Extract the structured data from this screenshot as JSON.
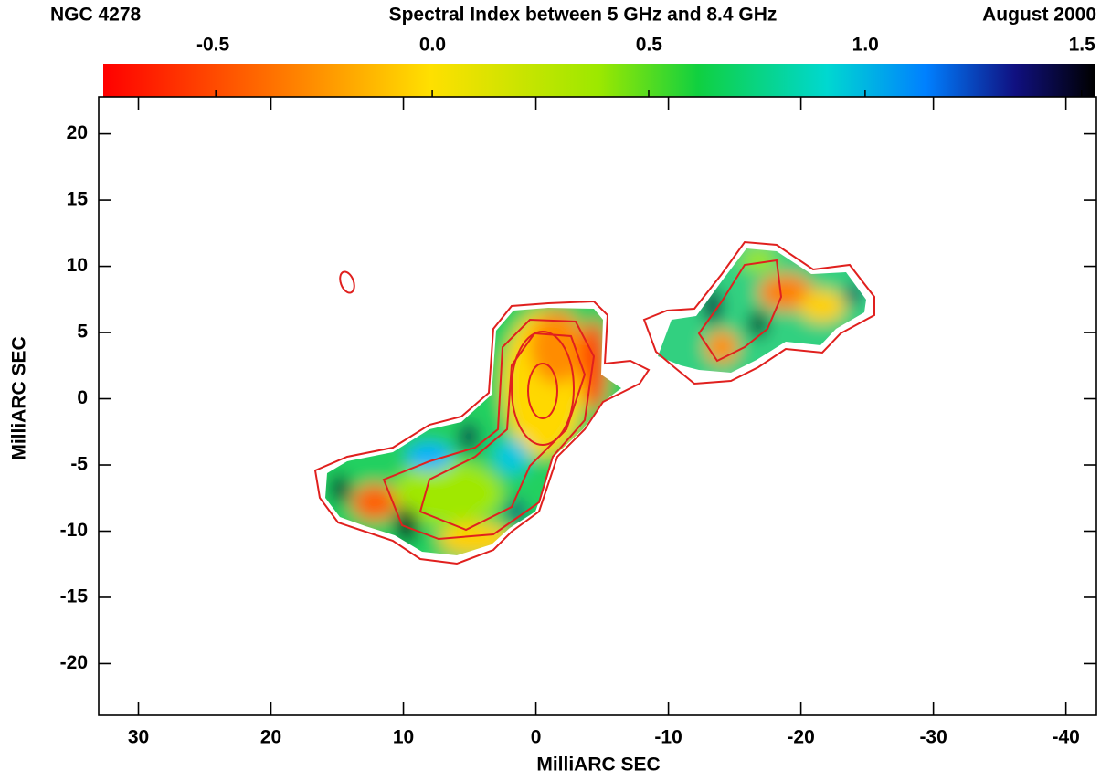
{
  "chart_data": {
    "type": "map",
    "object": "NGC 4278",
    "title": "Spectral Index between 5 GHz and 8.4 GHz",
    "date": "August 2000",
    "xlabel": "MilliARC SEC",
    "ylabel": "MilliARC SEC",
    "xlim": [
      33,
      -42.3
    ],
    "ylim": [
      -23.9,
      22.8
    ],
    "xticks": [
      30,
      20,
      10,
      0,
      -10,
      -20,
      -30,
      -40
    ],
    "yticks": [
      20,
      15,
      10,
      5,
      0,
      -5,
      -10,
      -15,
      -20
    ],
    "colorbar": {
      "lim": [
        -0.76,
        1.53
      ],
      "ticks": [
        -0.5,
        {
          "value": 0,
          "label": "0.0"
        },
        0.5,
        {
          "value": 1,
          "label": "1.0"
        },
        1.5
      ]
    },
    "contour_color": "#e0201e"
  }
}
